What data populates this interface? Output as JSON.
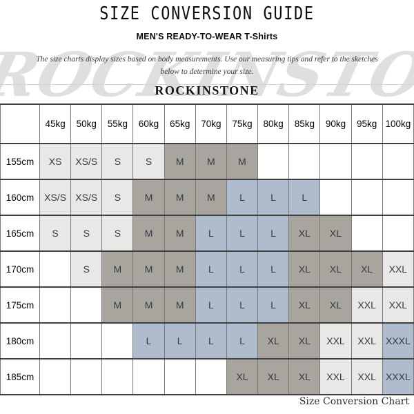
{
  "page": {
    "title": "SIZE CONVERSION GUIDE",
    "subtitle": "MEN'S READY-TO-WEAR T-Shirts",
    "description_line1": "The size charts display sizes based on body measurements. Use our measuring tips and refer to the sketches",
    "description_line2": "below to determine your size.",
    "brand": "ROCKINSTONE",
    "watermark": "ROCKINSTONE",
    "caption": "Size Conversion Chart"
  },
  "colors": {
    "cell_light": "#e9e8e6",
    "cell_dark": "#a8a49e",
    "cell_blue": "#aebcce",
    "cell_empty": "#ffffff",
    "diagonal_line": "#b98a5f",
    "grid_horizontal": "#3f3f3f",
    "grid_vertical": "#787878"
  },
  "size_color_key": {
    "XS": "cell_light",
    "XS/S": "cell_light",
    "S": "cell_light",
    "M": "cell_dark",
    "L": "cell_blue",
    "XL": "cell_dark",
    "XXL": "cell_light",
    "XXXL": "cell_blue"
  },
  "chart_data": {
    "type": "table",
    "title": "Size Conversion Guide",
    "columns": [
      "45kg",
      "50kg",
      "55kg",
      "60kg",
      "65kg",
      "70kg",
      "75kg",
      "80kg",
      "85kg",
      "90kg",
      "95kg",
      "100kg"
    ],
    "rows": [
      "155cm",
      "160cm",
      "165cm",
      "170cm",
      "175cm",
      "180cm",
      "185cm"
    ],
    "cells": [
      [
        "XS",
        "XS/S",
        "S",
        "S",
        "M",
        "M",
        "M",
        "",
        "",
        "",
        "",
        ""
      ],
      [
        "XS/S",
        "XS/S",
        "S",
        "M",
        "M",
        "M",
        "L",
        "L",
        "L",
        "",
        "",
        ""
      ],
      [
        "S",
        "S",
        "S",
        "M",
        "M",
        "L",
        "L",
        "L",
        "XL",
        "XL",
        "",
        ""
      ],
      [
        "",
        "S",
        "M",
        "M",
        "M",
        "L",
        "L",
        "L",
        "XL",
        "XL",
        "XL",
        "XXL"
      ],
      [
        "",
        "",
        "M",
        "M",
        "M",
        "L",
        "L",
        "L",
        "XL",
        "XL",
        "XXL",
        "XXL"
      ],
      [
        "",
        "",
        "",
        "L",
        "L",
        "L",
        "L",
        "XL",
        "XL",
        "XXL",
        "XXL",
        "XXXL"
      ],
      [
        "",
        "",
        "",
        "",
        "",
        "",
        "XL",
        "XL",
        "XL",
        "XXL",
        "XXL",
        "XXXL"
      ]
    ]
  }
}
